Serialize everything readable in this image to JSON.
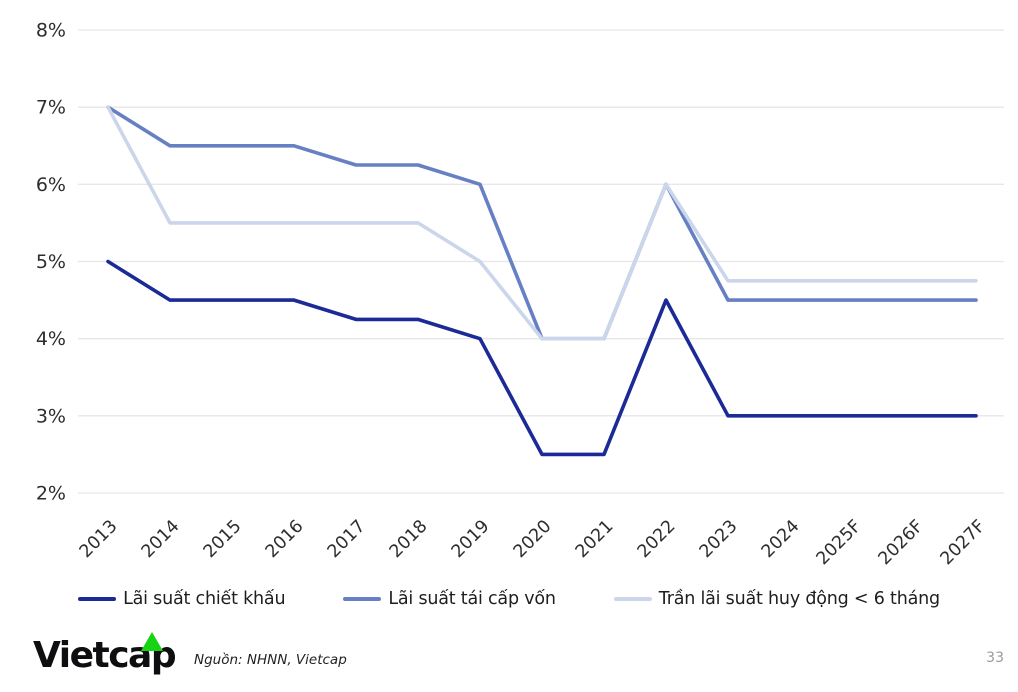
{
  "chart_data": {
    "type": "line",
    "title": "",
    "unit": "%",
    "categories": [
      "2013",
      "2014",
      "2015",
      "2016",
      "2017",
      "2018",
      "2019",
      "2020",
      "2021",
      "2022",
      "2023",
      "2024",
      "2025F",
      "2026F",
      "2027F"
    ],
    "ylim": [
      2,
      8
    ],
    "ytick_values": [
      8,
      7,
      6,
      5,
      4,
      3,
      2
    ],
    "ytick_labels": [
      "8%",
      "7%",
      "6%",
      "5%",
      "4%",
      "3%",
      "2%"
    ],
    "grid": true,
    "legend_position": "bottom",
    "series": [
      {
        "name": "Lãi suất chiết khấu",
        "color": "#1b2a96",
        "values": [
          5,
          4.5,
          4.5,
          4.5,
          4.25,
          4.25,
          4,
          2.5,
          2.5,
          4.5,
          3,
          3,
          3,
          3,
          3
        ]
      },
      {
        "name": "Lãi suất tái cấp vốn",
        "color": "#6780c4",
        "values": [
          7,
          6.5,
          6.5,
          6.5,
          6.25,
          6.25,
          6,
          4,
          4,
          6,
          4.5,
          4.5,
          4.5,
          4.5,
          4.5
        ]
      },
      {
        "name": "Trần lãi suất huy động < 6 tháng",
        "color": "#ccd6eb",
        "values": [
          7,
          5.5,
          5.5,
          5.5,
          5.5,
          5.5,
          5,
          4,
          4,
          6,
          4.75,
          4.75,
          4.75,
          4.75,
          4.75
        ]
      }
    ]
  },
  "colors": {
    "grid": "#e7e7e7",
    "axis_text": "#2d2d2d",
    "page_number": "#9b9b9b",
    "logo_green": "#16d313",
    "logo_text": "#0e0e10"
  },
  "footer": {
    "logo_text": "Vietcap",
    "source": "Nguồn: NHNN, Vietcap",
    "page_number": "33"
  }
}
